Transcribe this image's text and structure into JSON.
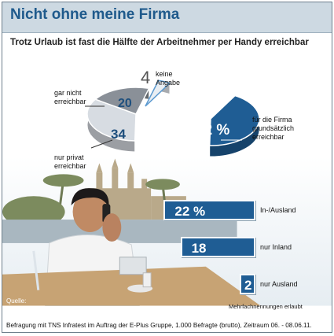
{
  "header": {
    "title": "Nicht ohne meine Firma"
  },
  "subtitle": "Trotz Urlaub ist fast die Hälfte der Arbeitnehmer per Handy erreichbar",
  "chart_data": [
    {
      "type": "pie",
      "slices": [
        {
          "label": "für die Firma grundsätzlich erreichbar",
          "value": 42,
          "display": "42 %",
          "color": "#1f5d94"
        },
        {
          "label": "nur privat erreichbar",
          "value": 34,
          "display": "34",
          "color": "#d7dce2"
        },
        {
          "label": "gar nicht erreichbar",
          "value": 20,
          "display": "20",
          "color": "#8a9098"
        },
        {
          "label": "keine Angabe",
          "value": 4,
          "display": "4",
          "color": "#e9eef3"
        }
      ]
    },
    {
      "type": "bar",
      "orientation": "horizontal",
      "categories": [
        "In-/Ausland",
        "nur Inland",
        "nur Ausland"
      ],
      "values": [
        22,
        18,
        2
      ],
      "displays": [
        "22 %",
        "18",
        "2"
      ],
      "color": "#1f5d94"
    }
  ],
  "pie_labels": {
    "firma": [
      "für die Firma",
      "grundsätzlich",
      "erreichbar"
    ],
    "privat": [
      "nur privat",
      "erreichbar"
    ],
    "garnicht": [
      "gar nicht",
      "erreichbar"
    ],
    "keine": [
      "keine",
      "Angabe"
    ]
  },
  "note": "Mehrfachnennungen erlaubt",
  "source_label": "Quelle:",
  "source": "Befragung mit TNS Infratest im Auftrag der E-Plus Gruppe, 1.000 Befragte (brutto), Zeitraum 06. - 08.06.11."
}
